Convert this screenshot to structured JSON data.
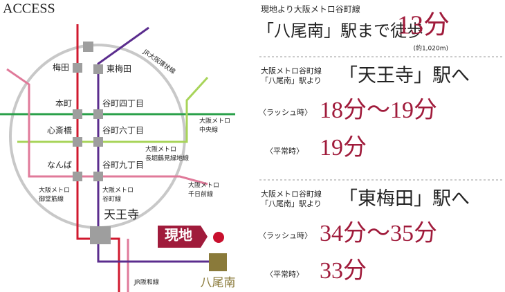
{
  "title": "ACCESS",
  "stations": [
    "梅田",
    "東梅田",
    "本町",
    "谷町四丁目",
    "心斎橋",
    "谷町六丁目",
    "なんば",
    "谷町九丁目",
    "天王寺",
    "八尾南"
  ],
  "lines": [
    {
      "label": [
        "JR大阪環状線"
      ]
    },
    {
      "label": [
        "大阪メトロ",
        "中央線"
      ]
    },
    {
      "label": [
        "大阪メトロ",
        "長堀鶴見緑地線"
      ]
    },
    {
      "label": [
        "大阪メトロ",
        "千日前線"
      ]
    },
    {
      "label": [
        "大阪メトロ",
        "御堂筋線"
      ]
    },
    {
      "label": [
        "大阪メトロ",
        "谷町線"
      ]
    },
    {
      "label": [
        "JR阪和線"
      ]
    }
  ],
  "site": "現地",
  "summary": {
    "line": "現地より大阪メトロ谷町線",
    "station": "「八尾南」駅まで徒歩",
    "time": "13分",
    "distance": "(約1,020m)"
  },
  "routes": [
    {
      "from": [
        "大阪メトロ谷町線",
        "「八尾南」駅より"
      ],
      "to": "「天王寺」駅へ",
      "rush_label": "〈ラッシュ時〉",
      "rush": "18分～19分",
      "normal_label": "〈平常時〉",
      "normal": "19分"
    },
    {
      "from": [
        "大阪メトロ谷町線",
        "「八尾南」駅より"
      ],
      "to": "「東梅田」駅へ",
      "rush_label": "〈ラッシュ時〉",
      "rush": "34分～35分",
      "normal_label": "〈平常時〉",
      "normal": "33分"
    }
  ]
}
